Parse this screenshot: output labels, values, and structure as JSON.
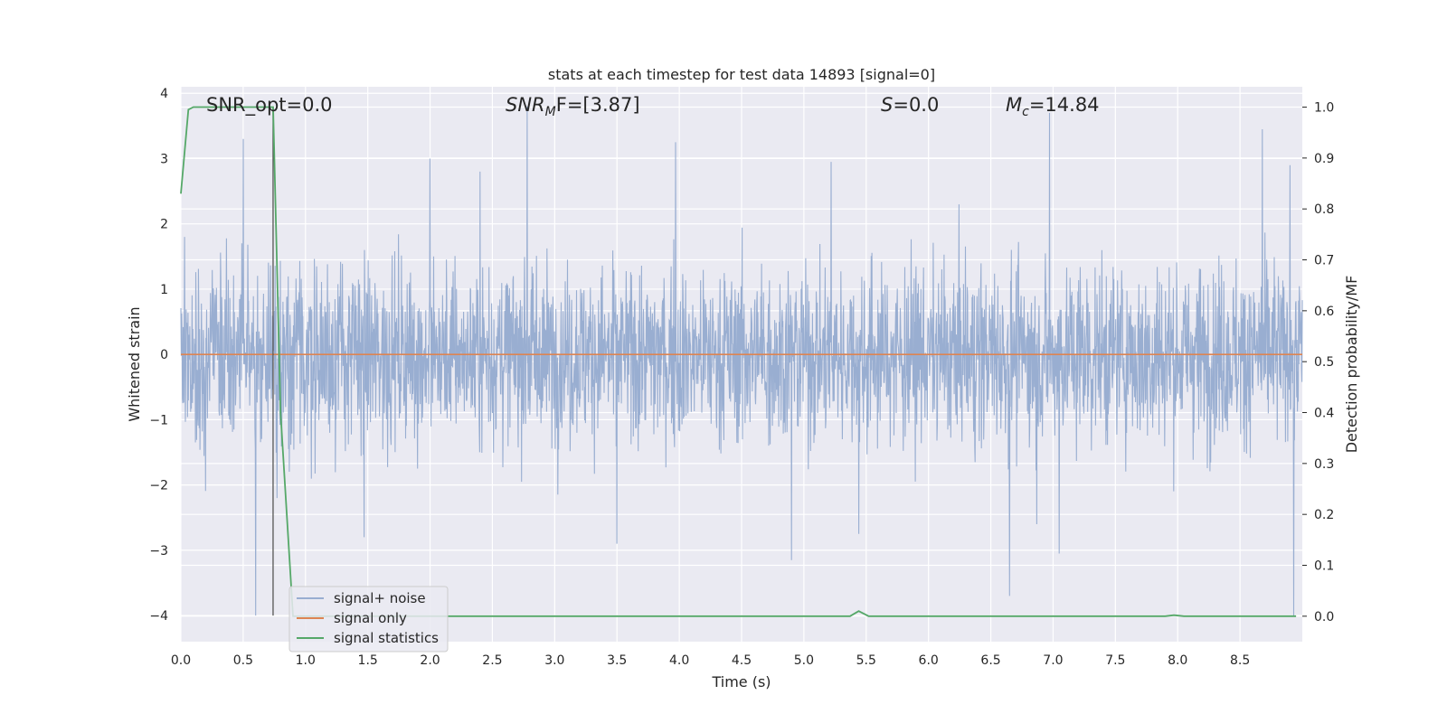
{
  "chart_data": {
    "type": "line",
    "title": "stats at each timestep for test data 14893 [signal=0]",
    "xlabel": "Time (s)",
    "ylabel": "Whitened strain",
    "y2label": "Detection probability/MF",
    "xlim": [
      0.0,
      9.0
    ],
    "ylim": [
      -4.4,
      4.1
    ],
    "y2lim": [
      -0.05,
      1.04
    ],
    "xticks": [
      "0.0",
      "0.5",
      "1.0",
      "1.5",
      "2.0",
      "2.5",
      "3.0",
      "3.5",
      "4.0",
      "4.5",
      "5.0",
      "5.5",
      "6.0",
      "6.5",
      "7.0",
      "7.5",
      "8.0",
      "8.5"
    ],
    "yticks": [
      "4",
      "3",
      "2",
      "1",
      "0",
      "−1",
      "−2",
      "−3",
      "−4"
    ],
    "y2ticks": [
      "1.0",
      "0.9",
      "0.8",
      "0.7",
      "0.6",
      "0.5",
      "0.4",
      "0.3",
      "0.2",
      "0.1",
      "0.0"
    ],
    "grid": true,
    "legend_position": "lower-left",
    "annotations": {
      "snr_opt": "SNR_opt=0.0",
      "snr_mf_name": "SNR",
      "snr_mf_sub": "M",
      "snr_mf_rest": "F=[3.87]",
      "s_name": "S",
      "s_rest": "=0.0",
      "mc_name": "M",
      "mc_sub": "c",
      "mc_rest": "=14.84"
    },
    "marker_time": 0.74,
    "series": [
      {
        "name": "signal+ noise",
        "color": "#99aed1",
        "kind": "noise",
        "typical_range": [
          -1.6,
          1.6
        ],
        "noise_samples": 3000,
        "peaks": [
          [
            0.03,
            1.8
          ],
          [
            0.5,
            3.3
          ],
          [
            2.0,
            3.0
          ],
          [
            2.4,
            2.8
          ],
          [
            2.78,
            3.8
          ],
          [
            3.97,
            3.25
          ],
          [
            5.22,
            2.95
          ],
          [
            6.97,
            3.7
          ],
          [
            8.68,
            3.45
          ],
          [
            8.9,
            2.9
          ]
        ],
        "troughs": [
          [
            0.6,
            -4.0
          ],
          [
            0.77,
            -2.2
          ],
          [
            1.47,
            -2.8
          ],
          [
            3.5,
            -2.9
          ],
          [
            4.9,
            -3.15
          ],
          [
            5.44,
            -2.75
          ],
          [
            6.65,
            -3.7
          ],
          [
            6.87,
            -2.6
          ],
          [
            7.05,
            -3.05
          ],
          [
            8.93,
            -4.0
          ]
        ]
      },
      {
        "name": "signal only",
        "color": "#dd8452",
        "x": [
          0.0,
          9.0
        ],
        "y": [
          0.0,
          0.0
        ]
      },
      {
        "name": "signal statistics",
        "color": "#55a868",
        "axis": "right",
        "x": [
          0.0,
          0.06,
          0.1,
          0.73,
          0.74,
          0.8,
          0.9,
          5.37,
          5.44,
          5.52,
          5.85,
          5.95,
          7.9,
          7.97,
          8.05,
          8.55,
          8.95
        ],
        "y": [
          0.83,
          0.995,
          1.0,
          1.0,
          1.0,
          0.4,
          0.0,
          0.0,
          0.01,
          0.0,
          0.0,
          0.0,
          0.0,
          0.002,
          0.0,
          0.0,
          0.0
        ]
      }
    ]
  }
}
